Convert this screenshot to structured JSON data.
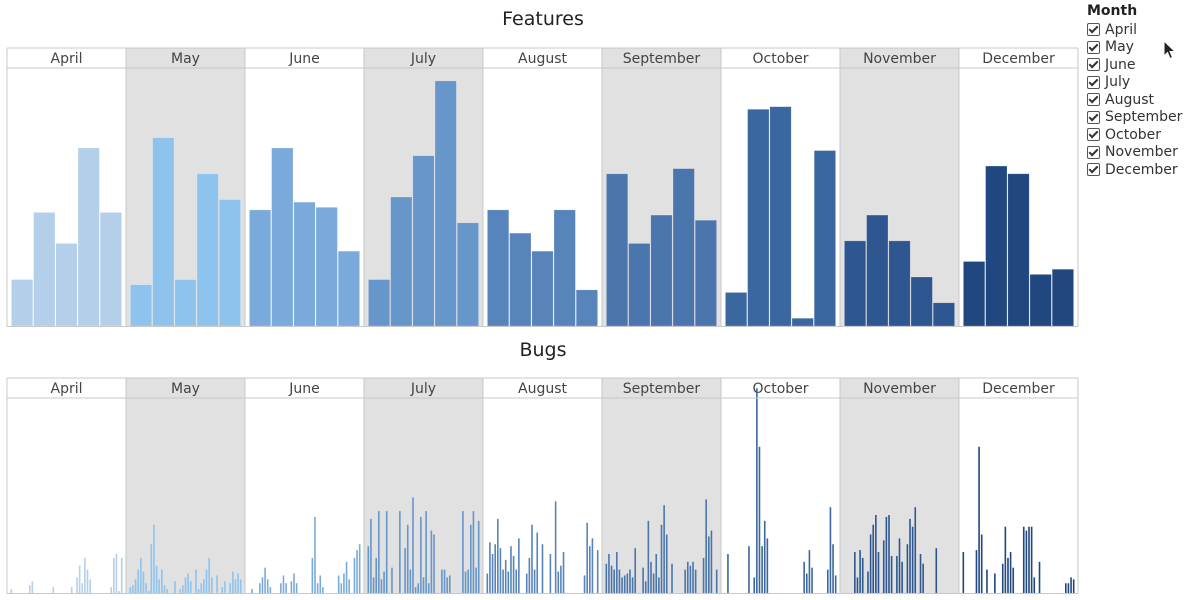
{
  "legend": {
    "title": "Month",
    "items": [
      "April",
      "May",
      "June",
      "July",
      "August",
      "September",
      "October",
      "November",
      "December"
    ]
  },
  "colors": {
    "months": [
      "#b4cfea",
      "#8ec3ee",
      "#7aaadb",
      "#6796cb",
      "#5784bb",
      "#4a76ad",
      "#3b67a0",
      "#2e5791",
      "#204780"
    ],
    "panel_shade": "#e1e1e1",
    "panel_border": "#c8c8c8"
  },
  "chart_data": [
    {
      "type": "bar",
      "title": "Features",
      "facet_by": "Month",
      "ylim": [
        0,
        100
      ],
      "grid": false,
      "panels": [
        {
          "month": "April",
          "values": [
            18,
            44,
            32,
            69,
            44
          ]
        },
        {
          "month": "May",
          "values": [
            16,
            73,
            18,
            59,
            49
          ]
        },
        {
          "month": "June",
          "values": [
            45,
            69,
            48,
            46,
            29
          ]
        },
        {
          "month": "July",
          "values": [
            18,
            50,
            66,
            95,
            40
          ]
        },
        {
          "month": "August",
          "values": [
            45,
            36,
            29,
            45,
            14
          ]
        },
        {
          "month": "September",
          "values": [
            59,
            32,
            43,
            61,
            41
          ]
        },
        {
          "month": "October",
          "values": [
            13,
            84,
            85,
            3,
            68
          ]
        },
        {
          "month": "November",
          "values": [
            33,
            43,
            33,
            19,
            9
          ]
        },
        {
          "month": "December",
          "values": [
            25,
            62,
            59,
            20,
            22
          ]
        }
      ]
    },
    {
      "type": "bar",
      "title": "Bugs",
      "facet_by": "Month",
      "ylim": [
        0,
        100
      ],
      "grid": false,
      "panels": [
        {
          "month": "April",
          "values": [
            2,
            0,
            0,
            0,
            0,
            0,
            0,
            4,
            6,
            0,
            0,
            0,
            0,
            0,
            0,
            0,
            3,
            0,
            0,
            0,
            0,
            0,
            0,
            3,
            0,
            8,
            14,
            5,
            18,
            12,
            7,
            0,
            0,
            0,
            0,
            0,
            0,
            0,
            3,
            18,
            20,
            1,
            18
          ]
        },
        {
          "month": "May",
          "values": [
            3,
            4,
            7,
            12,
            18,
            11,
            5,
            1,
            25,
            35,
            14,
            7,
            12,
            4,
            2,
            0,
            0,
            6,
            0,
            2,
            4,
            8,
            10,
            6,
            0,
            12,
            2,
            5,
            7,
            12,
            18,
            8,
            0,
            9,
            0,
            3,
            6,
            0,
            5,
            11,
            7,
            10,
            7
          ]
        },
        {
          "month": "June",
          "values": [
            0,
            2,
            0,
            0,
            5,
            8,
            13,
            7,
            3,
            0,
            0,
            0,
            5,
            9,
            5,
            0,
            6,
            10,
            5,
            0,
            0,
            0,
            0,
            0,
            18,
            39,
            5,
            9,
            3,
            0,
            0,
            0,
            0,
            0,
            9,
            5,
            10,
            16,
            7,
            0,
            18,
            22,
            25
          ]
        },
        {
          "month": "July",
          "values": [
            24,
            38,
            8,
            18,
            42,
            7,
            11,
            42,
            0,
            13,
            0,
            0,
            42,
            0,
            23,
            35,
            12,
            49,
            3,
            5,
            39,
            8,
            42,
            5,
            32,
            30,
            0,
            0,
            12,
            12,
            8,
            9,
            0,
            0,
            0,
            0,
            42,
            11,
            12,
            35,
            42,
            13,
            37
          ]
        },
        {
          "month": "August",
          "values": [
            10,
            26,
            20,
            25,
            38,
            23,
            12,
            17,
            11,
            24,
            19,
            12,
            28,
            0,
            0,
            10,
            18,
            35,
            12,
            31,
            0,
            25,
            0,
            0,
            20,
            0,
            47,
            11,
            14,
            21,
            0,
            0,
            0,
            0,
            0,
            0,
            0,
            9,
            36,
            24,
            28,
            0,
            22
          ]
        },
        {
          "month": "September",
          "values": [
            15,
            20,
            14,
            12,
            21,
            12,
            8,
            9,
            10,
            12,
            8,
            23,
            0,
            0,
            13,
            6,
            37,
            16,
            10,
            20,
            8,
            35,
            45,
            30,
            0,
            15,
            0,
            0,
            0,
            0,
            12,
            16,
            14,
            16,
            12,
            0,
            0,
            18,
            48,
            29,
            32,
            0,
            12
          ]
        },
        {
          "month": "October",
          "values": [
            0,
            20,
            0,
            0,
            0,
            0,
            0,
            0,
            0,
            24,
            0,
            8,
            105,
            75,
            24,
            37,
            28,
            0,
            0,
            0,
            0,
            0,
            0,
            0,
            0,
            0,
            0,
            0,
            0,
            0,
            16,
            10,
            22,
            13,
            0,
            0,
            0,
            0,
            0,
            12,
            44,
            25,
            9
          ]
        },
        {
          "month": "November",
          "values": [
            0,
            0,
            0,
            0,
            21,
            8,
            22,
            18,
            0,
            11,
            30,
            35,
            40,
            21,
            0,
            27,
            39,
            40,
            19,
            0,
            19,
            28,
            16,
            0,
            25,
            38,
            34,
            44,
            0,
            20,
            15,
            0,
            0,
            0,
            0,
            23,
            0,
            0,
            0,
            0,
            0,
            0,
            0
          ]
        },
        {
          "month": "December",
          "values": [
            21,
            0,
            0,
            0,
            0,
            22,
            75,
            30,
            0,
            12,
            0,
            0,
            10,
            0,
            0,
            15,
            34,
            18,
            21,
            13,
            0,
            0,
            0,
            34,
            32,
            34,
            34,
            8,
            0,
            16,
            0,
            0,
            0,
            0,
            0,
            0,
            0,
            0,
            0,
            5,
            5,
            8,
            7
          ]
        }
      ]
    }
  ]
}
